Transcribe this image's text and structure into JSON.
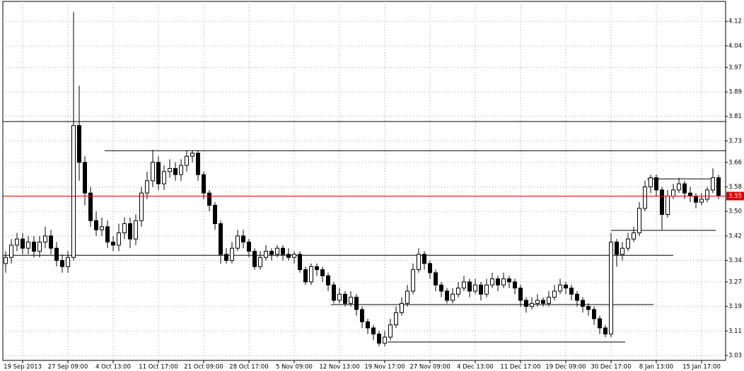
{
  "chart_data": {
    "type": "candlestick",
    "categories": [
      null,
      null,
      null,
      "19 Sep 2013",
      null,
      null,
      null,
      null,
      null,
      null,
      null,
      "27 Sep 09:00",
      null,
      null,
      null,
      null,
      null,
      null,
      null,
      "4 Oct 13:00",
      null,
      null,
      null,
      null,
      null,
      null,
      null,
      "11 Oct 17:00",
      null,
      null,
      null,
      null,
      null,
      null,
      null,
      "21 Oct 09:00",
      null,
      null,
      null,
      null,
      null,
      null,
      null,
      "28 Oct 17:00",
      null,
      null,
      null,
      null,
      null,
      null,
      null,
      "5 Nov 09:00",
      null,
      null,
      null,
      null,
      null,
      null,
      null,
      "12 Nov 13:00",
      null,
      null,
      null,
      null,
      null,
      null,
      null,
      "19 Nov 17:00",
      null,
      null,
      null,
      null,
      null,
      null,
      null,
      "27 Nov 09:00",
      null,
      null,
      null,
      null,
      null,
      null,
      null,
      "4 Dec 13:00",
      null,
      null,
      null,
      null,
      null,
      null,
      null,
      "11 Dec 17:00",
      null,
      null,
      null,
      null,
      null,
      null,
      null,
      "19 Dec 09:00",
      null,
      null,
      null,
      null,
      null,
      null,
      null,
      "30 Dec 17:00",
      null,
      null,
      null,
      null,
      null,
      null,
      null,
      "8 Jan 13:00",
      null,
      null,
      null,
      null,
      null,
      null,
      null,
      "15 Jan 17:00",
      null,
      null,
      null
    ],
    "candles": [
      [
        3.33,
        3.37,
        3.3,
        3.35
      ],
      [
        3.35,
        3.41,
        3.33,
        3.39
      ],
      [
        3.39,
        3.43,
        3.37,
        3.41
      ],
      [
        3.41,
        3.43,
        3.36,
        3.38
      ],
      [
        3.38,
        3.42,
        3.36,
        3.4
      ],
      [
        3.4,
        3.42,
        3.35,
        3.37
      ],
      [
        3.37,
        3.42,
        3.35,
        3.4
      ],
      [
        3.4,
        3.45,
        3.38,
        3.42
      ],
      [
        3.42,
        3.44,
        3.36,
        3.38
      ],
      [
        3.38,
        3.4,
        3.32,
        3.34
      ],
      [
        3.34,
        3.36,
        3.3,
        3.32
      ],
      [
        3.32,
        3.37,
        3.3,
        3.35
      ],
      [
        3.35,
        4.15,
        3.34,
        3.78
      ],
      [
        3.78,
        3.91,
        3.6,
        3.66
      ],
      [
        3.66,
        3.68,
        3.52,
        3.56
      ],
      [
        3.56,
        3.58,
        3.45,
        3.47
      ],
      [
        3.47,
        3.5,
        3.42,
        3.44
      ],
      [
        3.44,
        3.48,
        3.42,
        3.45
      ],
      [
        3.45,
        3.47,
        3.38,
        3.4
      ],
      [
        3.4,
        3.42,
        3.37,
        3.39
      ],
      [
        3.39,
        3.46,
        3.37,
        3.43
      ],
      [
        3.43,
        3.48,
        3.41,
        3.46
      ],
      [
        3.46,
        3.48,
        3.38,
        3.41
      ],
      [
        3.41,
        3.49,
        3.39,
        3.47
      ],
      [
        3.47,
        3.58,
        3.45,
        3.56
      ],
      [
        3.56,
        3.63,
        3.54,
        3.6
      ],
      [
        3.6,
        3.7,
        3.58,
        3.66
      ],
      [
        3.66,
        3.68,
        3.57,
        3.59
      ],
      [
        3.59,
        3.65,
        3.57,
        3.63
      ],
      [
        3.63,
        3.67,
        3.61,
        3.64
      ],
      [
        3.64,
        3.66,
        3.6,
        3.62
      ],
      [
        3.62,
        3.67,
        3.6,
        3.65
      ],
      [
        3.65,
        3.7,
        3.63,
        3.68
      ],
      [
        3.68,
        3.7,
        3.66,
        3.69
      ],
      [
        3.69,
        3.7,
        3.6,
        3.62
      ],
      [
        3.62,
        3.63,
        3.54,
        3.56
      ],
      [
        3.56,
        3.57,
        3.5,
        3.52
      ],
      [
        3.52,
        3.53,
        3.44,
        3.46
      ],
      [
        3.46,
        3.47,
        3.33,
        3.36
      ],
      [
        3.36,
        3.38,
        3.33,
        3.34
      ],
      [
        3.34,
        3.4,
        3.33,
        3.38
      ],
      [
        3.38,
        3.44,
        3.37,
        3.42
      ],
      [
        3.42,
        3.44,
        3.38,
        3.4
      ],
      [
        3.4,
        3.41,
        3.35,
        3.37
      ],
      [
        3.37,
        3.38,
        3.31,
        3.32
      ],
      [
        3.32,
        3.37,
        3.31,
        3.35
      ],
      [
        3.35,
        3.39,
        3.34,
        3.37
      ],
      [
        3.37,
        3.38,
        3.34,
        3.36
      ],
      [
        3.36,
        3.39,
        3.35,
        3.38
      ],
      [
        3.38,
        3.39,
        3.34,
        3.36
      ],
      [
        3.36,
        3.38,
        3.34,
        3.35
      ],
      [
        3.35,
        3.37,
        3.33,
        3.36
      ],
      [
        3.36,
        3.37,
        3.3,
        3.31
      ],
      [
        3.31,
        3.32,
        3.26,
        3.27
      ],
      [
        3.27,
        3.33,
        3.26,
        3.32
      ],
      [
        3.32,
        3.33,
        3.29,
        3.31
      ],
      [
        3.31,
        3.32,
        3.27,
        3.29
      ],
      [
        3.29,
        3.3,
        3.24,
        3.26
      ],
      [
        3.26,
        3.27,
        3.2,
        3.21
      ],
      [
        3.21,
        3.25,
        3.2,
        3.23
      ],
      [
        3.23,
        3.24,
        3.19,
        3.2
      ],
      [
        3.2,
        3.24,
        3.19,
        3.22
      ],
      [
        3.22,
        3.23,
        3.16,
        3.18
      ],
      [
        3.18,
        3.19,
        3.12,
        3.14
      ],
      [
        3.14,
        3.15,
        3.1,
        3.12
      ],
      [
        3.12,
        3.13,
        3.08,
        3.1
      ],
      [
        3.1,
        3.11,
        3.06,
        3.07
      ],
      [
        3.07,
        3.11,
        3.06,
        3.09
      ],
      [
        3.09,
        3.15,
        3.08,
        3.13
      ],
      [
        3.13,
        3.19,
        3.12,
        3.17
      ],
      [
        3.17,
        3.22,
        3.16,
        3.2
      ],
      [
        3.2,
        3.26,
        3.19,
        3.24
      ],
      [
        3.24,
        3.33,
        3.23,
        3.31
      ],
      [
        3.31,
        3.38,
        3.3,
        3.36
      ],
      [
        3.36,
        3.37,
        3.31,
        3.33
      ],
      [
        3.33,
        3.34,
        3.28,
        3.3
      ],
      [
        3.3,
        3.31,
        3.24,
        3.26
      ],
      [
        3.26,
        3.27,
        3.22,
        3.24
      ],
      [
        3.24,
        3.25,
        3.2,
        3.21
      ],
      [
        3.21,
        3.25,
        3.2,
        3.23
      ],
      [
        3.23,
        3.27,
        3.22,
        3.25
      ],
      [
        3.25,
        3.29,
        3.24,
        3.27
      ],
      [
        3.27,
        3.28,
        3.22,
        3.24
      ],
      [
        3.24,
        3.28,
        3.23,
        3.26
      ],
      [
        3.26,
        3.27,
        3.21,
        3.23
      ],
      [
        3.23,
        3.28,
        3.22,
        3.26
      ],
      [
        3.26,
        3.3,
        3.25,
        3.28
      ],
      [
        3.28,
        3.29,
        3.24,
        3.26
      ],
      [
        3.26,
        3.3,
        3.25,
        3.28
      ],
      [
        3.28,
        3.29,
        3.25,
        3.27
      ],
      [
        3.27,
        3.28,
        3.23,
        3.25
      ],
      [
        3.25,
        3.26,
        3.19,
        3.21
      ],
      [
        3.21,
        3.22,
        3.17,
        3.19
      ],
      [
        3.19,
        3.22,
        3.18,
        3.2
      ],
      [
        3.2,
        3.23,
        3.19,
        3.21
      ],
      [
        3.21,
        3.22,
        3.19,
        3.2
      ],
      [
        3.2,
        3.24,
        3.19,
        3.22
      ],
      [
        3.22,
        3.26,
        3.21,
        3.24
      ],
      [
        3.24,
        3.28,
        3.23,
        3.26
      ],
      [
        3.26,
        3.27,
        3.23,
        3.25
      ],
      [
        3.25,
        3.26,
        3.21,
        3.23
      ],
      [
        3.23,
        3.24,
        3.19,
        3.21
      ],
      [
        3.21,
        3.22,
        3.17,
        3.19
      ],
      [
        3.19,
        3.2,
        3.16,
        3.18
      ],
      [
        3.18,
        3.19,
        3.13,
        3.15
      ],
      [
        3.15,
        3.16,
        3.1,
        3.12
      ],
      [
        3.12,
        3.13,
        3.09,
        3.1
      ],
      [
        3.1,
        3.43,
        3.09,
        3.4
      ],
      [
        3.4,
        3.41,
        3.32,
        3.36
      ],
      [
        3.36,
        3.4,
        3.34,
        3.38
      ],
      [
        3.38,
        3.43,
        3.37,
        3.41
      ],
      [
        3.41,
        3.45,
        3.4,
        3.43
      ],
      [
        3.43,
        3.53,
        3.42,
        3.51
      ],
      [
        3.51,
        3.6,
        3.5,
        3.58
      ],
      [
        3.58,
        3.62,
        3.56,
        3.61
      ],
      [
        3.61,
        3.62,
        3.55,
        3.57
      ],
      [
        3.57,
        3.58,
        3.44,
        3.49
      ],
      [
        3.49,
        3.57,
        3.48,
        3.55
      ],
      [
        3.55,
        3.59,
        3.54,
        3.57
      ],
      [
        3.57,
        3.61,
        3.56,
        3.59
      ],
      [
        3.59,
        3.6,
        3.54,
        3.56
      ],
      [
        3.56,
        3.58,
        3.53,
        3.55
      ],
      [
        3.55,
        3.56,
        3.51,
        3.53
      ],
      [
        3.53,
        3.56,
        3.52,
        3.54
      ],
      [
        3.54,
        3.58,
        3.53,
        3.57
      ],
      [
        3.57,
        3.64,
        3.56,
        3.61
      ],
      [
        3.61,
        3.62,
        3.54,
        3.55
      ]
    ],
    "up_color": "#ffffff",
    "down_color": "#000000",
    "current_price": 3.55,
    "current_price_color": "#e00000",
    "hlines": [
      3.793,
      3.698,
      3.606,
      3.438,
      3.357,
      3.196,
      3.074
    ],
    "ylim": [
      3.014,
      4.185
    ],
    "yticks": [
      4.12,
      4.04,
      3.97,
      3.89,
      3.81,
      3.73,
      3.66,
      3.58,
      {
        "value": 3.5,
        "label": "3.50"
      },
      3.42,
      3.34,
      3.27,
      3.19,
      3.11,
      3.03
    ],
    "grid": true
  }
}
